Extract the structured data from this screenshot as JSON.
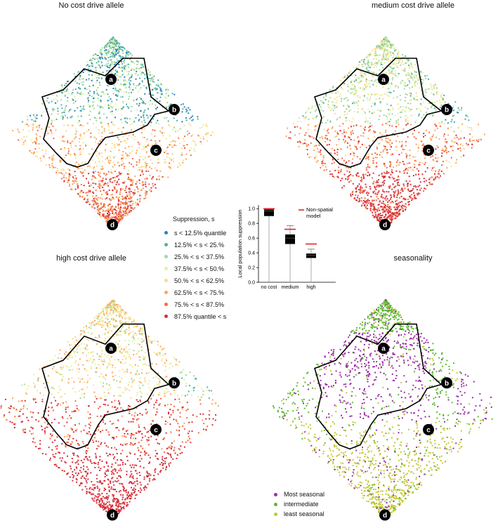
{
  "panels": [
    {
      "title": "No cost drive allele",
      "variant": "nocost"
    },
    {
      "title": "medium cost drive allele",
      "variant": "medium"
    },
    {
      "title": "high cost drive allele",
      "variant": "high"
    },
    {
      "title": "seasonality",
      "variant": "season"
    }
  ],
  "site_labels": [
    "a",
    "b",
    "c",
    "d"
  ],
  "suppression_legend": {
    "title": "Suppression, s",
    "items": [
      {
        "label": "s < 12.5% quantile",
        "color": "#2b83ba"
      },
      {
        "label": "12.5% < s < 25.%",
        "color": "#4fb3a8"
      },
      {
        "label": "25.% < s < 37.5%",
        "color": "#9fd8a4"
      },
      {
        "label": "37.5% < s < 50.%",
        "color": "#e6f19a"
      },
      {
        "label": "50.% < s < 62.5%",
        "color": "#fed98b"
      },
      {
        "label": "62.5% < s < 75.%",
        "color": "#fca55d"
      },
      {
        "label": "75.% < s < 87.5%",
        "color": "#f46d43"
      },
      {
        "label": "87.5% quantile < s",
        "color": "#d7303b"
      }
    ]
  },
  "seasonality_legend": {
    "items": [
      {
        "label": "Most seasonal",
        "color": "#9c2fa6"
      },
      {
        "label": "intermediate",
        "color": "#5dbb32"
      },
      {
        "label": "least seasonal",
        "color": "#c6c83a"
      }
    ]
  },
  "chart_data": {
    "type": "box",
    "title": "",
    "xlabel": "",
    "ylabel": "Local population suppression",
    "categories": [
      "no cost",
      "medium",
      "high"
    ],
    "ylim": [
      0,
      1.05
    ],
    "yticks": [
      "0.0",
      "0.2",
      "0.4",
      "0.6",
      "0.8",
      "1.0"
    ],
    "boxes": [
      {
        "min": 0.0,
        "q1": 0.9,
        "median": 0.97,
        "q3": 0.99,
        "max": 1.0
      },
      {
        "min": 0.0,
        "q1": 0.52,
        "median": 0.6,
        "q3": 0.65,
        "max": 0.77
      },
      {
        "min": 0.0,
        "q1": 0.33,
        "median": 0.37,
        "q3": 0.39,
        "max": 0.45
      }
    ],
    "nonspatial": [
      1.0,
      0.72,
      0.52
    ],
    "nonspatial_label": "Non-spatial model",
    "nonspatial_color": "#e0262b"
  }
}
